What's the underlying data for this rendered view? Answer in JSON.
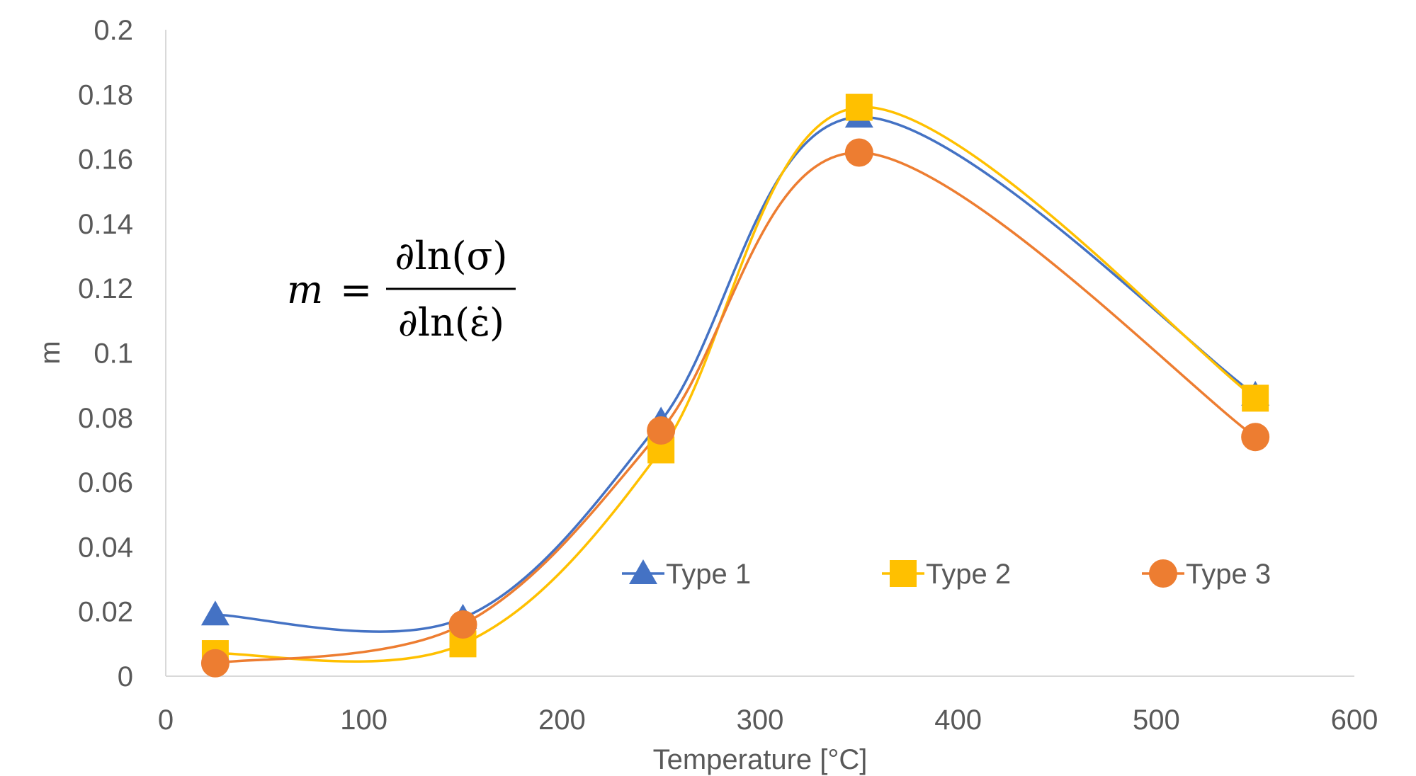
{
  "chart_data": {
    "type": "scatter",
    "xlabel": "Temperature [°C]",
    "ylabel": "m",
    "xlim": [
      0,
      600
    ],
    "ylim": [
      0,
      0.2
    ],
    "x_ticks": [
      "0",
      "100",
      "200",
      "300",
      "400",
      "500",
      "600"
    ],
    "y_ticks": [
      "0",
      "0.02",
      "0.04",
      "0.06",
      "0.08",
      "0.1",
      "0.12",
      "0.14",
      "0.16",
      "0.18",
      "0.2"
    ],
    "grid": false,
    "legend_position": "lower-right",
    "line_style": "smoothed",
    "annotation": {
      "lhs": "m",
      "equals": "=",
      "numerator": "∂ln(σ)",
      "denominator": "∂ln(ε̇)"
    },
    "series": [
      {
        "name": "Type 1",
        "color": "#4472C4",
        "marker": "triangle",
        "points": [
          [
            25,
            0.019
          ],
          [
            150,
            0.018
          ],
          [
            250,
            0.079
          ],
          [
            350,
            0.173
          ],
          [
            550,
            0.087
          ]
        ]
      },
      {
        "name": "Type 2",
        "color": "#FFC000",
        "marker": "square",
        "points": [
          [
            25,
            0.007
          ],
          [
            150,
            0.01
          ],
          [
            250,
            0.07
          ],
          [
            350,
            0.176
          ],
          [
            550,
            0.086
          ]
        ]
      },
      {
        "name": "Type 3",
        "color": "#ED7D31",
        "marker": "circle",
        "points": [
          [
            25,
            0.004
          ],
          [
            150,
            0.016
          ],
          [
            250,
            0.076
          ],
          [
            350,
            0.162
          ],
          [
            550,
            0.074
          ]
        ]
      }
    ]
  }
}
